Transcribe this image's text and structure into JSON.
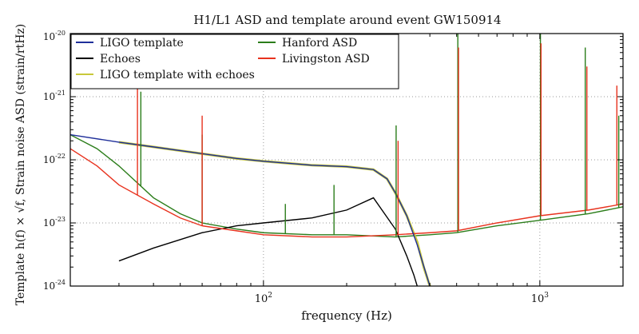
{
  "chart_data": {
    "type": "line",
    "title": "H1/L1 ASD and template around event GW150914",
    "xlabel": "frequency (Hz)",
    "ylabel": "Template h(f) × √f, Strain noise ASD  (strain/rtHz)",
    "xscale": "log",
    "yscale": "log",
    "xlim": [
      20,
      2000
    ],
    "ylim": [
      1e-24,
      1e-20
    ],
    "x_ticks": [
      {
        "value": 100,
        "label": "10",
        "exp": "2"
      },
      {
        "value": 1000,
        "label": "10",
        "exp": "3"
      }
    ],
    "y_ticks": [
      {
        "value": 1e-20,
        "label": "10",
        "exp": "-20"
      },
      {
        "value": 1e-21,
        "label": "10",
        "exp": "-21"
      },
      {
        "value": 1e-22,
        "label": "10",
        "exp": "-22"
      },
      {
        "value": 1e-23,
        "label": "10",
        "exp": "-23"
      },
      {
        "value": 1e-24,
        "label": "10",
        "exp": "-24"
      }
    ],
    "grid": true,
    "legend_position": "top-left",
    "legend": [
      {
        "name": "LIGO template",
        "color": "#1f2f9a"
      },
      {
        "name": "Echoes",
        "color": "#000000"
      },
      {
        "name": "LIGO template with echoes",
        "color": "#c8c83a"
      },
      {
        "name": "Hanford ASD",
        "color": "#2b7d1a"
      },
      {
        "name": "Livingston ASD",
        "color": "#e8321e"
      }
    ],
    "series": [
      {
        "name": "LIGO template",
        "color": "#1f2f9a",
        "x": [
          20,
          30,
          40,
          60,
          80,
          100,
          150,
          200,
          250,
          280,
          300,
          330,
          360,
          400
        ],
        "y": [
          2.5e-22,
          1.9e-22,
          1.6e-22,
          1.25e-22,
          1.05e-22,
          9.5e-23,
          8.2e-23,
          7.8e-23,
          7e-23,
          5e-23,
          3e-23,
          1.3e-23,
          4.5e-24,
          1e-24
        ]
      },
      {
        "name": "Echoes",
        "color": "#000000",
        "x": [
          30,
          40,
          60,
          80,
          100,
          150,
          200,
          250,
          300,
          330,
          350,
          360
        ],
        "y": [
          2.5e-24,
          4e-24,
          7e-24,
          9e-24,
          1e-23,
          1.2e-23,
          1.6e-23,
          2.5e-23,
          8e-24,
          3e-24,
          1.5e-24,
          1e-24
        ]
      },
      {
        "name": "LIGO template with echoes",
        "color": "#c8c83a",
        "x": [
          30,
          40,
          60,
          80,
          100,
          150,
          200,
          250,
          280,
          300,
          330,
          360,
          380,
          400
        ],
        "y": [
          1.9e-22,
          1.6e-22,
          1.25e-22,
          1.05e-22,
          9.5e-23,
          8.2e-23,
          7.8e-23,
          7e-23,
          5e-23,
          3e-23,
          1.3e-23,
          5e-24,
          2e-24,
          1e-24
        ]
      },
      {
        "name": "Hanford ASD",
        "color": "#2b7d1a",
        "x": [
          20,
          25,
          30,
          40,
          50,
          60,
          80,
          100,
          150,
          200,
          300,
          400,
          500,
          700,
          1000,
          1500,
          2000
        ],
        "y": [
          2.5e-22,
          1.5e-22,
          8e-23,
          2.5e-23,
          1.4e-23,
          1e-23,
          8e-24,
          7e-24,
          6.5e-24,
          6.5e-24,
          6e-24,
          6.5e-24,
          7e-24,
          9e-24,
          1.1e-23,
          1.4e-23,
          1.8e-23
        ]
      },
      {
        "name": "Livingston ASD",
        "color": "#e8321e",
        "x": [
          20,
          25,
          30,
          40,
          50,
          60,
          80,
          100,
          150,
          200,
          300,
          400,
          500,
          700,
          1000,
          1500,
          2000
        ],
        "y": [
          1.5e-22,
          8e-23,
          4e-23,
          2e-23,
          1.2e-23,
          9e-24,
          7.5e-24,
          6.5e-24,
          6e-24,
          6e-24,
          6.5e-24,
          7e-24,
          7.5e-24,
          1e-23,
          1.3e-23,
          1.6e-23,
          2e-23
        ]
      }
    ],
    "spikes": [
      {
        "series": "Livingston ASD",
        "x": 35,
        "y": 1.5e-21
      },
      {
        "series": "Hanford ASD",
        "x": 36,
        "y": 1.2e-21
      },
      {
        "series": "Hanford ASD",
        "x": 60,
        "y": 2.5e-22
      },
      {
        "series": "Livingston ASD",
        "x": 60,
        "y": 5e-22
      },
      {
        "series": "Hanford ASD",
        "x": 120,
        "y": 2e-23
      },
      {
        "series": "Hanford ASD",
        "x": 180,
        "y": 4e-23
      },
      {
        "series": "Hanford ASD",
        "x": 302,
        "y": 3.5e-22
      },
      {
        "series": "Livingston ASD",
        "x": 307,
        "y": 2e-22
      },
      {
        "series": "Hanford ASD",
        "x": 505,
        "y": 1e-20
      },
      {
        "series": "Livingston ASD",
        "x": 508,
        "y": 6e-21
      },
      {
        "series": "Hanford ASD",
        "x": 1005,
        "y": 1e-20
      },
      {
        "series": "Livingston ASD",
        "x": 1010,
        "y": 7e-21
      },
      {
        "series": "Hanford ASD",
        "x": 1460,
        "y": 6e-21
      },
      {
        "series": "Livingston ASD",
        "x": 1480,
        "y": 3e-21
      },
      {
        "series": "Livingston ASD",
        "x": 1900,
        "y": 1.5e-21
      },
      {
        "series": "Hanford ASD",
        "x": 1930,
        "y": 5e-22
      }
    ]
  }
}
